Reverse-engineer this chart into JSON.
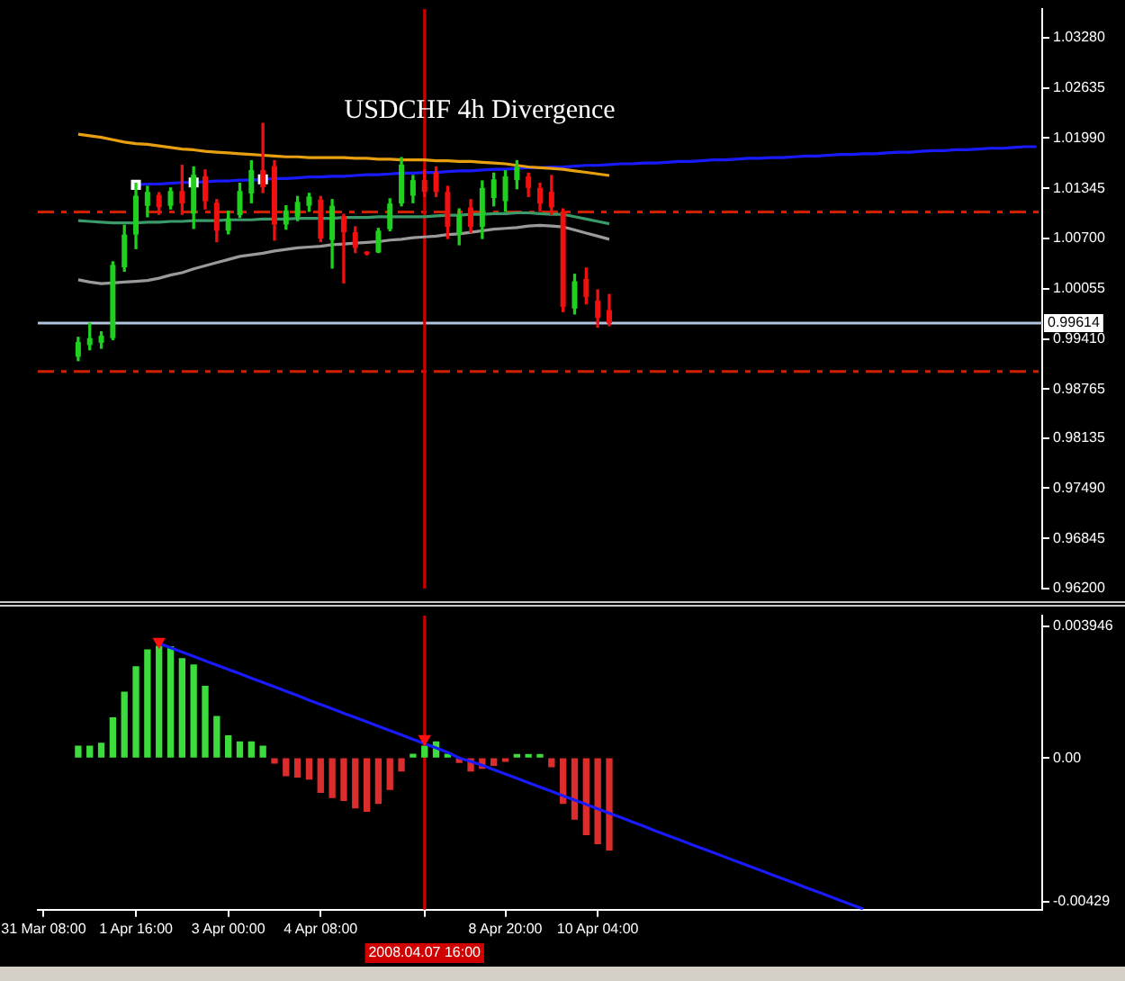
{
  "chart_data": [
    {
      "type": "candlestick",
      "title": "USDCHF 4h Divergence",
      "categories": [
        "31 Mar 08:00",
        null,
        null,
        null,
        null,
        null,
        null,
        null,
        "1 Apr 16:00",
        null,
        null,
        null,
        null,
        null,
        null,
        null,
        "3 Apr 00:00",
        null,
        null,
        null,
        null,
        null,
        null,
        null,
        "4 Apr 08:00",
        null,
        null,
        null,
        null,
        null,
        null,
        null,
        null,
        "2008.04.07 16:00",
        null,
        null,
        null,
        null,
        null,
        null,
        "8 Apr 20:00",
        null,
        null,
        null,
        null,
        null,
        null,
        null,
        "10 Apr 04:00",
        null,
        null,
        null,
        null,
        null,
        null,
        null,
        null,
        null,
        null,
        null,
        null,
        null,
        null,
        null,
        null,
        null,
        null,
        null,
        null,
        null,
        null,
        null,
        null,
        null,
        null,
        null,
        null,
        null,
        null,
        null,
        null,
        null,
        null,
        null,
        null,
        null,
        null
      ],
      "ohlc": [
        null,
        null,
        null,
        [
          0.9918,
          0.9943,
          0.9913,
          0.9937
        ],
        [
          0.9933,
          0.9961,
          0.9927,
          0.9942
        ],
        [
          0.9936,
          0.995,
          0.9929,
          0.9945
        ],
        [
          0.9942,
          1.004,
          0.994,
          1.0036
        ],
        [
          1.0033,
          1.0087,
          1.0028,
          1.0075
        ],
        [
          1.0075,
          1.0141,
          1.0057,
          1.0125
        ],
        [
          1.0112,
          1.0137,
          1.0098,
          1.013
        ],
        [
          1.0126,
          1.0129,
          1.0101,
          1.011
        ],
        [
          1.0112,
          1.0135,
          1.0108,
          1.0131
        ],
        [
          1.0131,
          1.0164,
          1.0101,
          1.0115
        ],
        [
          1.0102,
          1.0162,
          1.0083,
          1.0152
        ],
        [
          1.015,
          1.0158,
          1.0108,
          1.0118
        ],
        [
          1.0116,
          1.012,
          1.0066,
          1.008
        ],
        [
          1.008,
          1.0105,
          1.0076,
          1.0096
        ],
        [
          1.01,
          1.0141,
          1.0097,
          1.0131
        ],
        [
          1.0128,
          1.017,
          1.0116,
          1.0158
        ],
        [
          1.0158,
          1.0218,
          1.0129,
          1.0136
        ],
        [
          1.0163,
          1.017,
          1.0068,
          1.0088
        ],
        [
          1.0088,
          1.0112,
          1.0082,
          1.0106
        ],
        [
          1.0098,
          1.0124,
          1.0093,
          1.0117
        ],
        [
          1.0112,
          1.0128,
          1.0105,
          1.0124
        ],
        [
          1.012,
          1.0124,
          1.0066,
          1.007
        ],
        [
          1.0068,
          1.012,
          1.0032,
          1.0112
        ],
        [
          1.0099,
          1.0101,
          1.0013,
          1.0078
        ],
        [
          1.0078,
          1.0085,
          1.0052,
          1.0058
        ],
        [
          1.0053,
          1.0053,
          1.0049,
          1.005
        ],
        [
          1.0052,
          1.0083,
          1.0052,
          1.008
        ],
        [
          1.0082,
          1.0121,
          1.008,
          1.0115
        ],
        [
          1.0115,
          1.0174,
          1.0112,
          1.0165
        ],
        [
          1.0125,
          1.0151,
          1.0116,
          1.0145
        ],
        [
          1.0145,
          1.0158,
          1.0124,
          1.013
        ],
        [
          1.0155,
          1.0162,
          1.0124,
          1.013
        ],
        [
          1.013,
          1.0137,
          1.007,
          1.0085
        ],
        [
          1.0075,
          1.0108,
          1.0062,
          1.01
        ],
        [
          1.011,
          1.012,
          1.0078,
          1.0085
        ],
        [
          1.0085,
          1.0144,
          1.007,
          1.0135
        ],
        [
          1.0122,
          1.0154,
          1.0112,
          1.0146
        ],
        [
          1.0118,
          1.0157,
          1.0105,
          1.015
        ],
        [
          1.0145,
          1.017,
          1.0134,
          1.0162
        ],
        [
          1.015,
          1.0154,
          1.0124,
          1.0135
        ],
        [
          1.0135,
          1.0141,
          1.0105,
          1.0115
        ],
        [
          1.013,
          1.0151,
          1.0101,
          1.011
        ],
        [
          1.0105,
          1.0108,
          0.9976,
          0.9982
        ],
        [
          0.998,
          1.0024,
          0.9973,
          1.0015
        ],
        [
          1.0018,
          1.0032,
          0.9986,
          0.9995
        ],
        [
          0.999,
          1.0004,
          0.9956,
          0.9968
        ],
        [
          0.9978,
          0.9998,
          0.9958,
          0.9961
        ],
        null,
        null,
        null,
        null,
        null,
        null,
        null,
        null,
        null,
        null,
        null,
        null,
        null,
        null,
        null,
        null,
        null,
        null,
        null,
        null,
        null,
        null,
        null,
        null,
        null,
        null,
        null,
        null,
        null,
        null,
        null,
        null,
        null,
        null,
        null,
        null,
        null
      ],
      "colors": [
        null,
        null,
        null,
        "#1fd01f",
        "#1fd01f",
        "#1fd01f",
        "#1fd01f",
        "#1fd01f",
        "#1fd01f",
        "#1fd01f",
        "#f01010",
        "#1fd01f",
        "#f01010",
        "#1fd01f",
        "#f01010",
        "#f01010",
        "#1fd01f",
        "#1fd01f",
        "#1fd01f",
        "#f01010",
        "#f01010",
        "#1fd01f",
        "#1fd01f",
        "#1fd01f",
        "#f01010",
        "#1fd01f",
        "#f01010",
        "#f01010",
        "#f01010",
        "#1fd01f",
        "#1fd01f",
        "#1fd01f",
        "#1fd01f",
        "#f01010",
        "#f01010",
        "#f01010",
        "#1fd01f",
        "#f01010",
        "#1fd01f",
        "#1fd01f",
        "#1fd01f",
        "#1fd01f",
        "#f01010",
        "#f01010",
        "#f01010",
        "#f01010",
        "#1fd01f",
        "#f01010",
        "#f01010",
        "#f01010",
        null,
        null,
        null,
        null,
        null,
        null,
        null,
        null,
        null,
        null,
        null,
        null,
        null,
        null,
        null,
        null,
        null,
        null,
        null,
        null,
        null,
        null,
        null,
        null,
        null,
        null,
        null,
        null,
        null,
        null,
        null,
        null,
        null,
        null,
        null,
        null,
        null
      ],
      "series": [
        {
          "type": "line",
          "color": "#e8a010",
          "values": [
            null,
            null,
            null,
            1.0204,
            1.0202,
            1.02,
            1.0197,
            1.0194,
            1.0192,
            1.0191,
            1.0189,
            1.0187,
            1.0185,
            1.0184,
            1.0182,
            1.0181,
            1.018,
            1.0179,
            1.0178,
            1.0177,
            1.0176,
            1.0175,
            1.0175,
            1.0174,
            1.0174,
            1.0174,
            1.0174,
            1.0173,
            1.0173,
            1.0172,
            1.0172,
            1.0171,
            1.0171,
            1.0171,
            1.017,
            1.017,
            1.0169,
            1.0169,
            1.0168,
            1.0167,
            1.0166,
            1.0164,
            1.0162,
            1.0161,
            1.016,
            1.0159,
            1.0157,
            1.0155,
            1.0153,
            1.0151,
            null,
            null,
            null,
            null,
            null,
            null,
            null,
            null,
            null,
            null,
            null,
            null,
            null,
            null,
            null,
            null,
            null,
            null,
            null,
            null,
            null,
            null,
            null,
            null,
            null,
            null,
            null,
            null,
            null,
            null,
            null,
            null,
            null,
            null,
            null,
            null,
            null
          ]
        },
        {
          "type": "line",
          "color": "#3a9a6a",
          "values": [
            null,
            null,
            null,
            1.0093,
            1.0092,
            1.0091,
            1.009,
            1.009,
            1.009,
            1.0091,
            1.0091,
            1.0092,
            1.0092,
            1.0093,
            1.0093,
            1.0093,
            1.0094,
            1.0094,
            1.0094,
            1.0095,
            1.0095,
            1.0095,
            1.0096,
            1.0096,
            1.0096,
            1.0096,
            1.0097,
            1.0097,
            1.0097,
            1.0098,
            1.0098,
            1.0098,
            1.0098,
            1.0098,
            1.0099,
            1.01,
            1.01,
            1.0101,
            1.0101,
            1.0102,
            1.0102,
            1.0103,
            1.0103,
            1.0102,
            1.0101,
            1.0101,
            1.0098,
            1.0095,
            1.0092,
            1.0089,
            null,
            null,
            null,
            null,
            null,
            null,
            null,
            null,
            null,
            null,
            null,
            null,
            null,
            null,
            null,
            null,
            null,
            null,
            null,
            null,
            null,
            null,
            null,
            null,
            null,
            null,
            null,
            null,
            null,
            null,
            null,
            null,
            null,
            null,
            null,
            null,
            null
          ]
        },
        {
          "type": "line",
          "color": "#9a9a9a",
          "values": [
            null,
            null,
            null,
            1.0017,
            1.0014,
            1.0012,
            1.0013,
            1.0014,
            1.0015,
            1.0016,
            1.0019,
            1.0023,
            1.0026,
            1.0031,
            1.0035,
            1.0039,
            1.0043,
            1.0047,
            1.0049,
            1.0051,
            1.0054,
            1.0056,
            1.0058,
            1.0059,
            1.006,
            1.0062,
            1.0063,
            1.0064,
            1.0065,
            1.0066,
            1.0068,
            1.0069,
            1.0071,
            1.0072,
            1.0073,
            1.0075,
            1.0076,
            1.0078,
            1.008,
            1.0082,
            1.0083,
            1.0084,
            1.0086,
            1.0087,
            1.0086,
            1.0085,
            1.0081,
            1.0077,
            1.0073,
            1.0069,
            null,
            null,
            null,
            null,
            null,
            null,
            null,
            null,
            null,
            null,
            null,
            null,
            null,
            null,
            null,
            null,
            null,
            null,
            null,
            null,
            null,
            null,
            null,
            null,
            null,
            null,
            null,
            null,
            null,
            null,
            null,
            null,
            null,
            null,
            null,
            null,
            null
          ]
        },
        {
          "type": "line",
          "color": "#1a1aff",
          "values": [
            null,
            null,
            null,
            null,
            null,
            null,
            null,
            null,
            1.0139,
            1.014,
            1.014,
            1.0141,
            1.0142,
            1.0142,
            1.0143,
            1.0144,
            1.0144,
            1.0145,
            1.0145,
            1.0146,
            1.0147,
            1.0147,
            1.0148,
            1.0149,
            1.0149,
            1.015,
            1.015,
            1.0151,
            1.0152,
            1.0152,
            1.0153,
            1.0154,
            1.0154,
            1.0155,
            1.0155,
            1.0156,
            1.0157,
            1.0157,
            1.0158,
            1.0159,
            1.0159,
            1.016,
            1.0161,
            1.0161,
            1.0162,
            1.0162,
            1.0163,
            1.0164,
            1.0164,
            1.0165,
            1.0166,
            1.0166,
            1.0167,
            1.0167,
            1.0168,
            1.0169,
            1.0169,
            1.017,
            1.0171,
            1.0171,
            1.0172,
            1.0173,
            1.0173,
            1.0174,
            1.0174,
            1.0175,
            1.0176,
            1.0176,
            1.0177,
            1.0178,
            1.0178,
            1.0179,
            1.0179,
            1.018,
            1.0181,
            1.0181,
            1.0182,
            1.0183,
            1.0183,
            1.0184,
            1.0184,
            1.0185,
            1.0186,
            1.0186,
            1.0187,
            1.0188,
            1.0188
          ]
        },
        {
          "type": "scatter",
          "color": "#ffffff",
          "marker": "square",
          "values": [
            null,
            null,
            null,
            null,
            null,
            null,
            null,
            null,
            1.0139,
            null,
            null,
            null,
            null,
            1.0142,
            null,
            null,
            null,
            null,
            null,
            1.0146,
            null,
            null,
            null,
            null,
            null,
            null,
            null,
            null,
            null,
            null,
            null,
            null,
            null,
            null,
            null,
            null,
            null,
            null,
            null,
            null,
            null,
            null,
            null,
            null,
            null,
            null,
            null,
            null,
            null,
            null,
            null,
            null,
            null,
            null,
            null,
            null,
            null,
            null,
            null,
            null,
            null,
            null,
            null,
            null,
            null,
            null,
            null,
            null,
            null,
            null,
            null,
            null,
            null,
            null,
            null,
            null,
            null,
            null,
            null,
            null,
            null,
            null,
            null,
            null,
            null,
            null,
            null
          ]
        }
      ],
      "ylim": [
        0.962,
        1.0365
      ],
      "yticks": [
        {
          "value": 1.0328,
          "label": "1.03280"
        },
        1.02635,
        {
          "value": 1.0199,
          "label": "1.01990"
        },
        1.01345,
        {
          "value": 1.007,
          "label": "1.00700"
        },
        1.00055,
        {
          "value": 0.9941,
          "label": "0.99410"
        },
        0.98765,
        0.98135,
        {
          "value": 0.9749,
          "label": "0.97490"
        },
        0.96845,
        {
          "value": 0.962,
          "label": "0.96200"
        }
      ],
      "ref_lines": [
        {
          "axis": "y",
          "value": 1.0104,
          "color": "#d02000",
          "line_style": "dashed"
        },
        {
          "axis": "y",
          "value": 0.9899,
          "color": "#d02000",
          "line_style": "dashed"
        },
        {
          "axis": "y",
          "value": 0.99614,
          "label": "0.99614",
          "color": "#b0c4de"
        },
        {
          "axis": "x",
          "value": "2008.04.07 16:00",
          "color": "#d00000"
        }
      ],
      "tick_labels": "y"
    },
    {
      "type": "bar",
      "categories": [
        "31 Mar 08:00",
        null,
        null,
        null,
        null,
        null,
        null,
        null,
        "1 Apr 16:00",
        null,
        null,
        null,
        null,
        null,
        null,
        null,
        "3 Apr 00:00",
        null,
        null,
        null,
        null,
        null,
        null,
        null,
        "4 Apr 08:00",
        null,
        null,
        null,
        null,
        null,
        null,
        null,
        null,
        "2008.04.07 16:00",
        null,
        null,
        null,
        null,
        null,
        null,
        "8 Apr 20:00",
        null,
        null,
        null,
        null,
        null,
        null,
        null,
        "10 Apr 04:00",
        null,
        null,
        null,
        null,
        null,
        null,
        null,
        null,
        null,
        null,
        null,
        null,
        null,
        null,
        null,
        null,
        null,
        null,
        null,
        null,
        null,
        null,
        null,
        null,
        null,
        null,
        null,
        null,
        null,
        null,
        null,
        null,
        null,
        null,
        null,
        null,
        null,
        null
      ],
      "series": [
        {
          "type": "bar",
          "colors": [
            null,
            null,
            null,
            "#3cdc3c",
            "#3cdc3c",
            "#3cdc3c",
            "#3cdc3c",
            "#3cdc3c",
            "#3cdc3c",
            "#3cdc3c",
            "#3cdc3c",
            "#3cdc3c",
            "#3cdc3c",
            "#3cdc3c",
            "#3cdc3c",
            "#3cdc3c",
            "#3cdc3c",
            "#3cdc3c",
            "#3cdc3c",
            "#3cdc3c",
            "#dc2d2d",
            "#dc2d2d",
            "#dc2d2d",
            "#dc2d2d",
            "#dc2d2d",
            "#dc2d2d",
            "#dc2d2d",
            "#dc2d2d",
            "#dc2d2d",
            "#dc2d2d",
            "#dc2d2d",
            "#dc2d2d",
            "#3cdc3c",
            "#3cdc3c",
            "#3cdc3c",
            "#3cdc3c",
            "#dc2d2d",
            "#dc2d2d",
            "#dc2d2d",
            "#dc2d2d",
            "#dc2d2d",
            "#3cdc3c",
            "#3cdc3c",
            "#3cdc3c",
            "#dc2d2d",
            "#dc2d2d",
            "#dc2d2d",
            "#dc2d2d",
            "#dc2d2d",
            "#dc2d2d",
            null,
            null,
            null,
            null,
            null,
            null,
            null,
            null,
            null,
            null,
            null,
            null,
            null,
            null,
            null,
            null,
            null,
            null,
            null,
            null,
            null,
            null,
            null,
            null,
            null,
            null,
            null,
            null,
            null,
            null,
            null,
            null,
            null,
            null,
            null,
            null,
            null
          ],
          "values": [
            null,
            null,
            null,
            0.00035,
            0.00035,
            0.00044,
            0.0012,
            0.00197,
            0.00273,
            0.00323,
            0.00334,
            0.00333,
            0.00297,
            0.00278,
            0.00214,
            0.00124,
            0.00066,
            0.00048,
            0.00048,
            0.00035,
            -0.00015,
            -0.00053,
            -0.00057,
            -0.00063,
            -0.00103,
            -0.00118,
            -0.00127,
            -0.00149,
            -0.00159,
            -0.00136,
            -0.00094,
            -0.00039,
            0.00011,
            0.00035,
            0.00048,
            0.00011,
            -0.00013,
            -0.00039,
            -0.00031,
            -0.00022,
            -0.0001,
            0.0001,
            0.0001,
            0.0001,
            -0.00026,
            -0.00136,
            -0.00183,
            -0.00229,
            -0.00256,
            -0.00275,
            null,
            null,
            null,
            null,
            null,
            null,
            null,
            null,
            null,
            null,
            null,
            null,
            null,
            null,
            null,
            null,
            null,
            null,
            null,
            null,
            null,
            null,
            null,
            null,
            null,
            null,
            null,
            null,
            null,
            null,
            null,
            null,
            null,
            null,
            null,
            null,
            null
          ]
        },
        {
          "type": "line",
          "color": "#1a1aff",
          "values": [
            null,
            null,
            null,
            null,
            null,
            null,
            null,
            null,
            null,
            null,
            0.00343,
            0.0033,
            0.00317,
            0.00304,
            0.00291,
            0.00278,
            0.00265,
            0.00252,
            0.00239,
            0.00226,
            0.00213,
            0.002,
            0.00187,
            0.00173,
            0.0016,
            0.00147,
            0.00134,
            0.00121,
            0.00108,
            0.00095,
            0.00082,
            0.00069,
            0.00056,
            0.00043,
            0.0003,
            0.00017,
            0,
            -0.0001,
            -0.00022,
            -0.00035,
            -0.00048,
            -0.00061,
            -0.00074,
            -0.00087,
            -0.001,
            -0.00113,
            -0.00126,
            -0.00139,
            -0.00152,
            -0.00165,
            -0.00178,
            -0.00191,
            -0.00204,
            -0.00218,
            -0.00231,
            -0.00244,
            -0.00257,
            -0.0027,
            -0.00283,
            -0.00296,
            -0.00309,
            -0.00322,
            -0.00335,
            -0.00348,
            -0.00361,
            -0.00374,
            -0.00387,
            -0.004,
            -0.00413,
            -0.00426,
            -0.00439,
            -0.00452,
            null,
            null,
            null,
            null,
            null,
            null,
            null,
            null,
            null,
            null,
            null,
            null,
            null,
            null,
            null
          ]
        },
        {
          "type": "scatter",
          "color": "#ff1010",
          "marker": "triangle",
          "values": [
            null,
            null,
            null,
            null,
            null,
            null,
            null,
            null,
            null,
            null,
            0.00348,
            null,
            null,
            null,
            null,
            null,
            null,
            null,
            null,
            null,
            null,
            null,
            null,
            null,
            null,
            null,
            null,
            null,
            null,
            null,
            null,
            null,
            null,
            0.00057,
            null,
            null,
            null,
            null,
            null,
            null,
            null,
            null,
            null,
            null,
            null,
            null,
            null,
            null,
            null,
            null,
            null,
            null,
            null,
            null,
            null,
            null,
            null,
            null,
            null,
            null,
            null,
            null,
            null,
            null,
            null,
            null,
            null,
            null,
            null,
            null,
            null,
            null,
            null,
            null,
            null,
            null,
            null,
            null,
            null,
            null,
            null,
            null,
            null,
            null,
            null,
            null,
            null
          ]
        }
      ],
      "ylim": [
        -0.00454,
        0.00426
      ],
      "yticks": [
        {
          "value": 0.003946,
          "label": "0.003946"
        },
        {
          "value": 0,
          "label": "0.00"
        },
        -0.00429
      ],
      "ref_lines": [
        {
          "axis": "x",
          "value": "2008.04.07 16:00",
          "color": "#d00000"
        }
      ]
    }
  ]
}
